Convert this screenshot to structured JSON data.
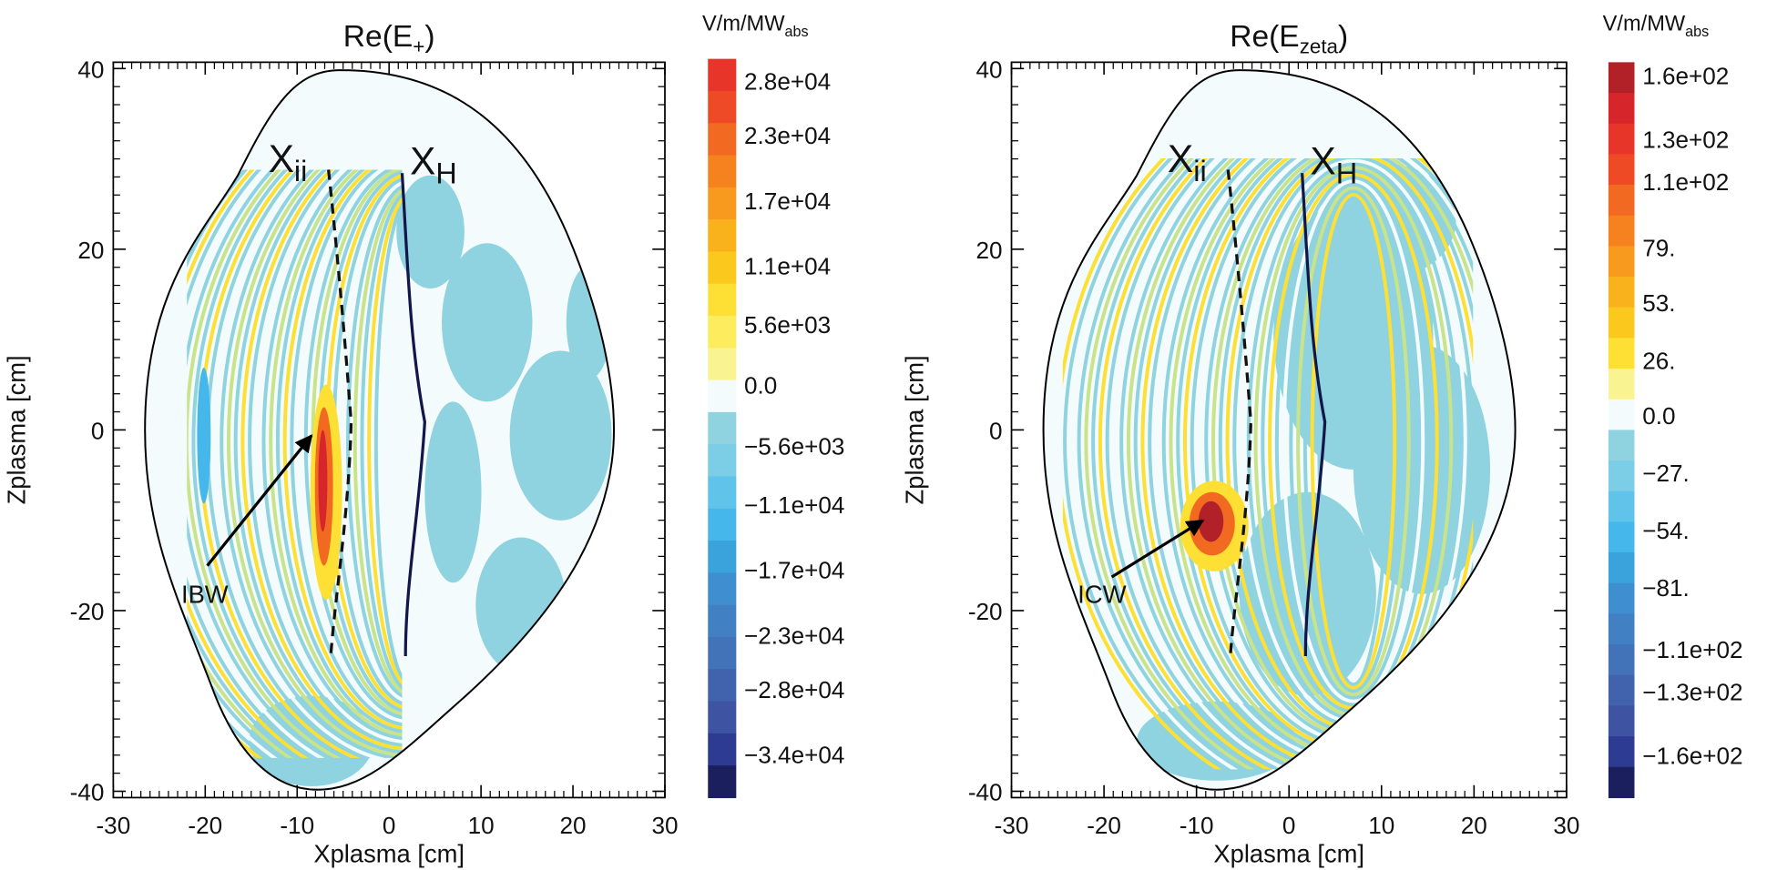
{
  "chart_data": [
    {
      "type": "contour",
      "title": [
        "Re(E",
        "+",
        ")"
      ],
      "xlabel": "Xplasma [cm]",
      "ylabel": "Zplasma [cm]",
      "xlim": [
        -30,
        30
      ],
      "ylim": [
        -40.7,
        40.7
      ],
      "xticks": [
        -30,
        -20,
        -10,
        0,
        10,
        20,
        30
      ],
      "yticks": [
        -40,
        -20,
        0,
        20,
        40
      ],
      "grid": false,
      "annotations": {
        "xii": [
          "X",
          "ii"
        ],
        "xh": [
          "X",
          "H"
        ],
        "wave": "IBW"
      },
      "colorbar": {
        "label": [
          "V/m/MW",
          "abs"
        ],
        "clim": [
          -38000,
          30000
        ],
        "ticks": [
          {
            "value": 28000,
            "label": "2.8e+04"
          },
          {
            "value": 23000,
            "label": "2.3e+04"
          },
          {
            "value": 17000,
            "label": "1.7e+04"
          },
          {
            "value": 11000,
            "label": "1.1e+04"
          },
          {
            "value": 5600,
            "label": "5.6e+03"
          },
          {
            "value": 0,
            "label": "0.0"
          },
          {
            "value": -5600,
            "label": "−5.6e+03"
          },
          {
            "value": -11000,
            "label": "−1.1e+04"
          },
          {
            "value": -17000,
            "label": "−1.7e+04"
          },
          {
            "value": -23000,
            "label": "−2.3e+04"
          },
          {
            "value": -28000,
            "label": "−2.8e+04"
          },
          {
            "value": -34000,
            "label": "−3.4e+04"
          }
        ],
        "colors": [
          "#e8352a",
          "#ee4a26",
          "#f26a22",
          "#f5821f",
          "#f79a1e",
          "#f9b21c",
          "#fbc81e",
          "#fde033",
          "#fdec5e",
          "#faf391",
          "#f4fbfd",
          "#8fd3e0",
          "#7ccde6",
          "#5fc3ea",
          "#45b7ea",
          "#3aa3dc",
          "#3f8ecf",
          "#4280c4",
          "#4272b8",
          "#4163ad",
          "#3e54a3",
          "#2e3b93",
          "#1b1f5e"
        ]
      }
    },
    {
      "type": "contour",
      "title": [
        "Re(E",
        "zeta",
        ")"
      ],
      "xlabel": "Xplasma [cm]",
      "ylabel": "Zplasma [cm]",
      "xlim": [
        -30,
        30
      ],
      "ylim": [
        -40.7,
        40.7
      ],
      "xticks": [
        -30,
        -20,
        -10,
        0,
        10,
        20,
        30
      ],
      "yticks": [
        -40,
        -20,
        0,
        20,
        40
      ],
      "grid": false,
      "annotations": {
        "xii": [
          "X",
          "ii"
        ],
        "xh": [
          "X",
          "H"
        ],
        "wave": "ICW"
      },
      "colorbar": {
        "label": [
          "V/m/MW",
          "abs"
        ],
        "clim": [
          -180,
          166
        ],
        "ticks": [
          {
            "value": 160,
            "label": "1.6e+02"
          },
          {
            "value": 130,
            "label": "1.3e+02"
          },
          {
            "value": 110,
            "label": "1.1e+02"
          },
          {
            "value": 79,
            "label": "79."
          },
          {
            "value": 53,
            "label": "53."
          },
          {
            "value": 26,
            "label": "26."
          },
          {
            "value": 0,
            "label": "0.0"
          },
          {
            "value": -27,
            "label": "−27."
          },
          {
            "value": -54,
            "label": "−54."
          },
          {
            "value": -81,
            "label": "−81."
          },
          {
            "value": -110,
            "label": "−1.1e+02"
          },
          {
            "value": -130,
            "label": "−1.3e+02"
          },
          {
            "value": -160,
            "label": "−1.6e+02"
          }
        ],
        "colors": [
          "#b22028",
          "#d7262b",
          "#e8352a",
          "#ee4a26",
          "#f26a22",
          "#f5821f",
          "#f79a1e",
          "#f9b21c",
          "#fbc81e",
          "#fde033",
          "#faf391",
          "#f4fbfd",
          "#8fd3e0",
          "#7ccde6",
          "#5fc3ea",
          "#45b7ea",
          "#3aa3dc",
          "#3f8ecf",
          "#4280c4",
          "#4272b8",
          "#4163ad",
          "#3e54a3",
          "#2e3b93",
          "#1b1f5e"
        ]
      }
    }
  ]
}
